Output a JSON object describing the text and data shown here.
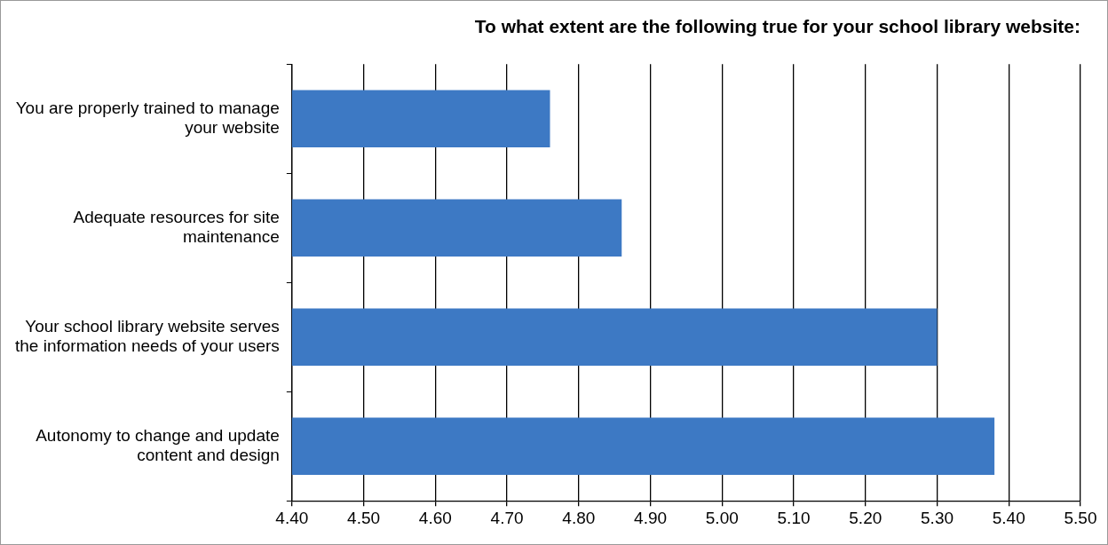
{
  "chart_data": {
    "type": "bar",
    "orientation": "horizontal",
    "title": "To what extent are the following true for your school library website:",
    "categories": [
      "You are properly trained to manage your website",
      "Adequate resources for site maintenance",
      "Your school library website serves the information needs of your users",
      "Autonomy to change and update content and design"
    ],
    "values": [
      4.76,
      4.86,
      5.3,
      5.38
    ],
    "color": "#3d79c4",
    "xlim": [
      4.4,
      5.5
    ],
    "xticks": [
      {
        "value": 4.4,
        "label": "4.40"
      },
      {
        "value": 4.5,
        "label": "4.50"
      },
      {
        "value": 4.6,
        "label": "4.60"
      },
      {
        "value": 4.7,
        "label": "4.70"
      },
      {
        "value": 4.8,
        "label": "4.80"
      },
      {
        "value": 4.9,
        "label": "4.90"
      },
      {
        "value": 5.0,
        "label": "5.00"
      },
      {
        "value": 5.1,
        "label": "5.10"
      },
      {
        "value": 5.2,
        "label": "5.20"
      },
      {
        "value": 5.3,
        "label": "5.30"
      },
      {
        "value": 5.4,
        "label": "5.40"
      },
      {
        "value": 5.5,
        "label": "5.50"
      }
    ],
    "grid": "x",
    "legend": false
  }
}
